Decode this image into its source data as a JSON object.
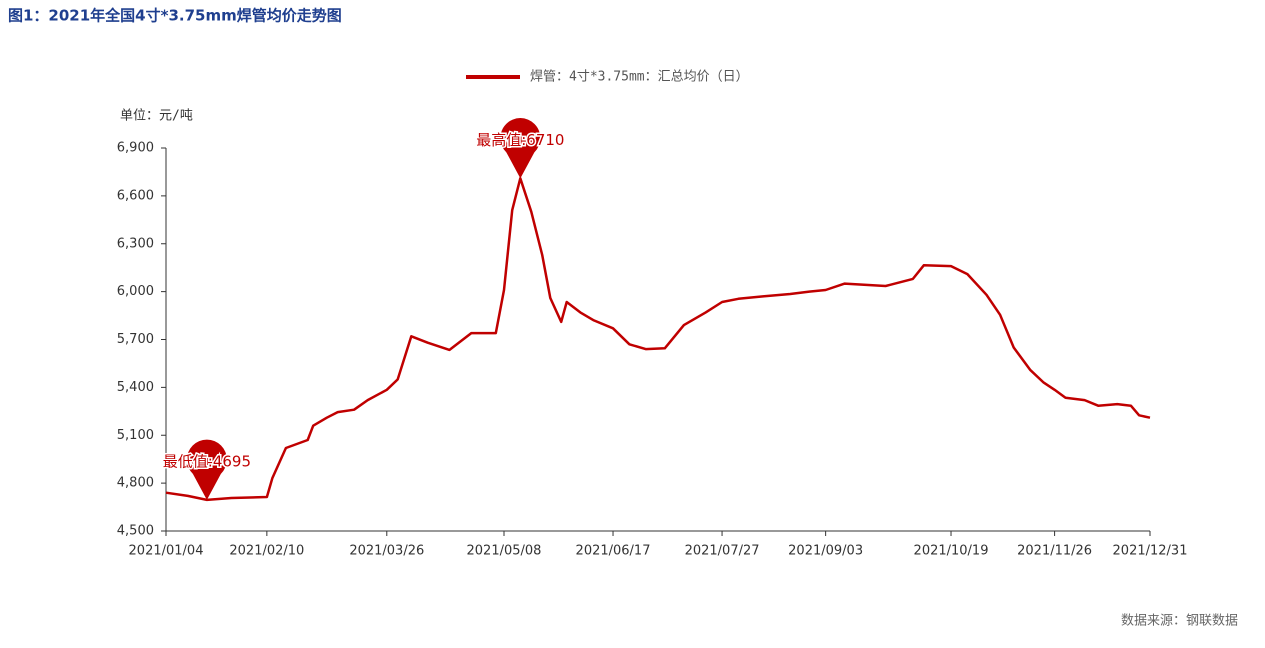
{
  "chart_data": {
    "type": "line",
    "title": "图1：2021年全国4寸*3.75mm焊管均价走势图",
    "y_unit_label": "单位：元/吨",
    "source": "数据来源：钢联数据",
    "x": [
      "2021/01/04",
      "2021/01/12",
      "2021/01/19",
      "2021/01/28",
      "2021/02/10",
      "2021/02/12",
      "2021/02/17",
      "2021/02/25",
      "2021/02/27",
      "2021/03/04",
      "2021/03/08",
      "2021/03/14",
      "2021/03/19",
      "2021/03/26",
      "2021/03/30",
      "2021/04/04",
      "2021/04/10",
      "2021/04/18",
      "2021/04/26",
      "2021/05/05",
      "2021/05/08",
      "2021/05/11",
      "2021/05/14",
      "2021/05/18",
      "2021/05/22",
      "2021/05/25",
      "2021/05/29",
      "2021/05/31",
      "2021/06/05",
      "2021/06/10",
      "2021/06/17",
      "2021/06/23",
      "2021/06/29",
      "2021/07/06",
      "2021/07/13",
      "2021/07/21",
      "2021/07/27",
      "2021/08/02",
      "2021/08/11",
      "2021/08/21",
      "2021/08/28",
      "2021/09/03",
      "2021/09/10",
      "2021/09/25",
      "2021/10/05",
      "2021/10/09",
      "2021/10/19",
      "2021/10/25",
      "2021/11/01",
      "2021/11/06",
      "2021/11/11",
      "2021/11/17",
      "2021/11/22",
      "2021/11/26",
      "2021/11/30",
      "2021/12/07",
      "2021/12/12",
      "2021/12/19",
      "2021/12/24",
      "2021/12/27",
      "2021/12/31"
    ],
    "series": [
      {
        "name": "焊管：4寸*3.75mm：汇总均价（日）",
        "color": "#c00000",
        "values": [
          4740,
          4720,
          4695,
          4707,
          4713,
          4830,
          5020,
          5070,
          5160,
          5210,
          5245,
          5260,
          5320,
          5385,
          5450,
          5720,
          5680,
          5635,
          5740,
          5740,
          6010,
          6510,
          6710,
          6500,
          6230,
          5960,
          5810,
          5935,
          5870,
          5820,
          5770,
          5670,
          5640,
          5645,
          5790,
          5870,
          5935,
          5955,
          5970,
          5985,
          6000,
          6010,
          6050,
          6035,
          6080,
          6165,
          6160,
          6110,
          5980,
          5855,
          5650,
          5510,
          5430,
          5385,
          5335,
          5320,
          5285,
          5295,
          5285,
          5225,
          5210
        ]
      }
    ],
    "xlim": [
      "2021/01/04",
      "2021/12/31"
    ],
    "xticks": [
      "2021/01/04",
      "2021/02/10",
      "2021/03/26",
      "2021/05/08",
      "2021/06/17",
      "2021/07/27",
      "2021/09/03",
      "2021/10/19",
      "2021/11/26",
      "2021/12/31"
    ],
    "ylim": [
      4500,
      6900
    ],
    "yticks": [
      {
        "value": 4500,
        "label": "4,500"
      },
      {
        "value": 4800,
        "label": "4,800"
      },
      {
        "value": 5100,
        "label": "5,100"
      },
      {
        "value": 5400,
        "label": "5,400"
      },
      {
        "value": 5700,
        "label": "5,700"
      },
      {
        "value": 6000,
        "label": "6,000"
      },
      {
        "value": 6300,
        "label": "6,300"
      },
      {
        "value": 6600,
        "label": "6,600"
      },
      {
        "value": 6900,
        "label": "6,900"
      }
    ],
    "annotations": [
      {
        "label": "最高值:6710",
        "x": "2021/05/14",
        "value": 6710
      },
      {
        "label": "最低值:4695",
        "x": "2021/01/19",
        "value": 4695
      }
    ],
    "legend": "top"
  }
}
